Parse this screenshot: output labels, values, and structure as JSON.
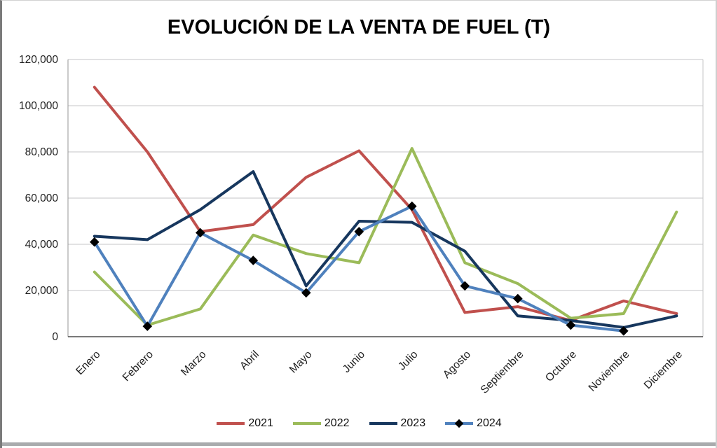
{
  "chart_data": {
    "type": "line",
    "title": "EVOLUCIÓN DE LA VENTA DE FUEL (T)",
    "xlabel": "",
    "ylabel": "",
    "categories": [
      "Enero",
      "Febrero",
      "Marzo",
      "Abril",
      "Mayo",
      "Junio",
      "Julio",
      "Agosto",
      "Septiembre",
      "Octubre",
      "Noviembre",
      "Diciembre"
    ],
    "series": [
      {
        "name": "2021",
        "color": "#C0504D",
        "marker": "none",
        "values": [
          108000,
          80000,
          45500,
          48500,
          69000,
          80500,
          55000,
          10500,
          13000,
          7000,
          15500,
          10000
        ]
      },
      {
        "name": "2022",
        "color": "#9BBB59",
        "marker": "none",
        "values": [
          28000,
          5000,
          12000,
          44000,
          36000,
          32000,
          81500,
          32000,
          23000,
          8000,
          10000,
          54000
        ]
      },
      {
        "name": "2023",
        "color": "#17375E",
        "marker": "none",
        "values": [
          43500,
          42000,
          55000,
          71500,
          22000,
          50000,
          49500,
          37000,
          9000,
          7000,
          4000,
          9000
        ]
      },
      {
        "name": "2024",
        "color": "#4F81BD",
        "marker": "diamond",
        "marker_color": "#000000",
        "values": [
          41000,
          4500,
          45000,
          33000,
          19000,
          45500,
          56500,
          22000,
          16500,
          5000,
          2500,
          null
        ]
      }
    ],
    "ylim": [
      0,
      120000
    ],
    "ytick_step": 20000,
    "y_tick_labels": [
      "0",
      "20,000",
      "40,000",
      "60,000",
      "80,000",
      "100,000",
      "120,000"
    ],
    "grid": "horizontal",
    "legend_position": "bottom",
    "x_label_rotation_deg": -45
  },
  "appearance": {
    "background": "#FFFFFF",
    "gridline_color": "#C4C5C7",
    "y_axis_color": "#949494",
    "x_axis_color": "#4D4D4D",
    "plot_right_border_color": "#C4C5C7",
    "text_color": "#1F1F1F",
    "bottom_bar_color": "#A9ABAD"
  }
}
